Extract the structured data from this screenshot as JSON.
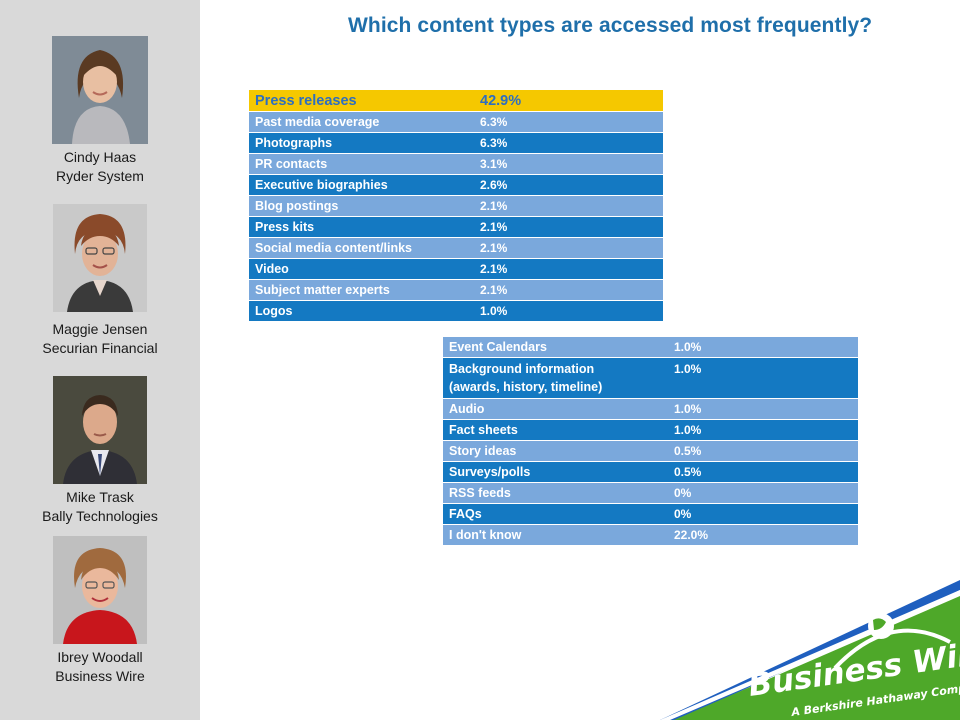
{
  "title": "Which content types are accessed most frequently?",
  "speakers": [
    {
      "name": "Cindy Haas",
      "org": "Ryder System"
    },
    {
      "name": "Maggie Jensen",
      "org": "Securian Financial"
    },
    {
      "name": "Mike Trask",
      "org": "Bally Technologies"
    },
    {
      "name": "Ibrey Woodall",
      "org": "Business Wire"
    }
  ],
  "table1": [
    {
      "label": "Press releases",
      "value": "42.9%"
    },
    {
      "label": "Past media coverage",
      "value": "6.3%"
    },
    {
      "label": "Photographs",
      "value": "6.3%"
    },
    {
      "label": "PR contacts",
      "value": "3.1%"
    },
    {
      "label": "Executive biographies",
      "value": "2.6%"
    },
    {
      "label": "Blog postings",
      "value": "2.1%"
    },
    {
      "label": "Press kits",
      "value": "2.1%"
    },
    {
      "label": "Social media content/links",
      "value": "2.1%"
    },
    {
      "label": "Video",
      "value": "2.1%"
    },
    {
      "label": "Subject matter experts",
      "value": "2.1%"
    },
    {
      "label": "Logos",
      "value": "1.0%"
    }
  ],
  "table2": [
    {
      "label": "Event Calendars",
      "value": "1.0%"
    },
    {
      "label": "Background information",
      "label2": "(awards, history, timeline)",
      "value": "1.0%"
    },
    {
      "label": "Audio",
      "value": "1.0%"
    },
    {
      "label": "Fact sheets",
      "value": "1.0%"
    },
    {
      "label": "Story ideas",
      "value": "0.5%"
    },
    {
      "label": "Surveys/polls",
      "value": "0.5%"
    },
    {
      "label": "RSS feeds",
      "value": "0%"
    },
    {
      "label": "FAQs",
      "value": "0%"
    },
    {
      "label": "I don't know",
      "value": "22.0%"
    }
  ],
  "logo": {
    "brand": "Business Wire",
    "tagline": "A Berkshire Hathaway Company",
    "brand_color": "#4ea829",
    "stripe_color": "#1f5fbf"
  },
  "colors": {
    "title": "#1f6faa",
    "row_dark": "#1479c2",
    "row_light": "#7aa8dc",
    "highlight": "#f5c800"
  }
}
